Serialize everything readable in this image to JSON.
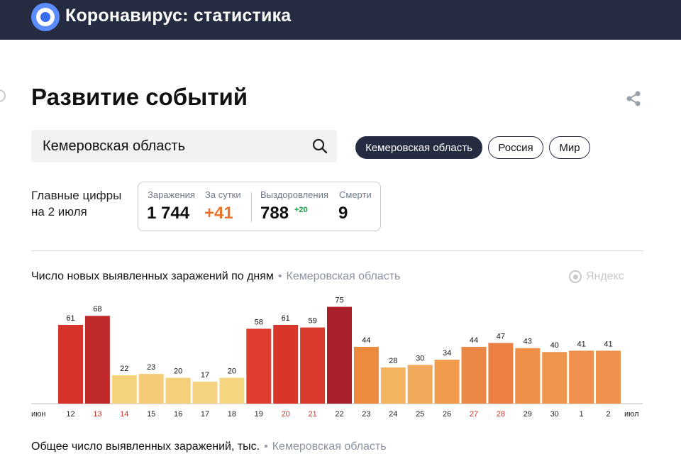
{
  "header": {
    "title": "Коронавирус: статистика",
    "logo_icon": "yandex-coronavirus-logo"
  },
  "page": {
    "title": "Развитие событий",
    "share_icon": "share-icon"
  },
  "search": {
    "value": "Кемеровская область",
    "icon": "search-icon"
  },
  "filters": [
    {
      "label": "Кемеровская область",
      "active": true
    },
    {
      "label": "Россия",
      "active": false
    },
    {
      "label": "Мир",
      "active": false
    }
  ],
  "summary": {
    "label_line1": "Главные цифры",
    "label_line2": "на 2 июля",
    "infections_caption": "Заражения",
    "infections_value": "1 744",
    "per_day_caption": "За сутки",
    "per_day_value": "+41",
    "recoveries_caption": "Выздоровления",
    "recoveries_value": "788",
    "recoveries_delta": "+20",
    "deaths_caption": "Смерти",
    "deaths_value": "9"
  },
  "chart": {
    "title": "Число новых выявленных заражений по дням",
    "separator": "•",
    "region": "Кемеровская область",
    "watermark": "Яндекс"
  },
  "bottom_chart": {
    "title": "Общее число выявленных заражений, тыс.",
    "separator": "•",
    "region": "Кемеровская область"
  },
  "colors": {
    "header_bg": "#252b40",
    "accent_orange": "#e8742c",
    "accent_green": "#1c9a4a",
    "weekend_red": "#d0332c"
  },
  "chart_data": {
    "type": "bar",
    "title": "Число новых выявленных заражений по дням",
    "categories": [
      "12",
      "13",
      "14",
      "15",
      "16",
      "17",
      "18",
      "19",
      "20",
      "21",
      "22",
      "23",
      "24",
      "25",
      "26",
      "27",
      "28",
      "29",
      "30",
      "1",
      "2"
    ],
    "values": [
      61,
      68,
      22,
      23,
      20,
      17,
      20,
      58,
      61,
      59,
      75,
      44,
      28,
      30,
      34,
      44,
      47,
      43,
      40,
      41,
      41
    ],
    "colors": [
      "#d6342b",
      "#c02a2a",
      "#f5d27e",
      "#f5cb77",
      "#f5cf79",
      "#f6d380",
      "#f6d581",
      "#df3d2f",
      "#d8362b",
      "#d83b2e",
      "#a8202a",
      "#ec8a3e",
      "#f3b35f",
      "#f1a95a",
      "#f09a4c",
      "#ec8846",
      "#ea8044",
      "#ee8f4a",
      "#ef954e",
      "#ef914c",
      "#ef914c"
    ],
    "weekend": [
      "13",
      "14",
      "20",
      "21",
      "27",
      "28"
    ],
    "x_start_label": "июн",
    "x_end_label": "июл",
    "ylim": [
      0,
      80
    ]
  }
}
